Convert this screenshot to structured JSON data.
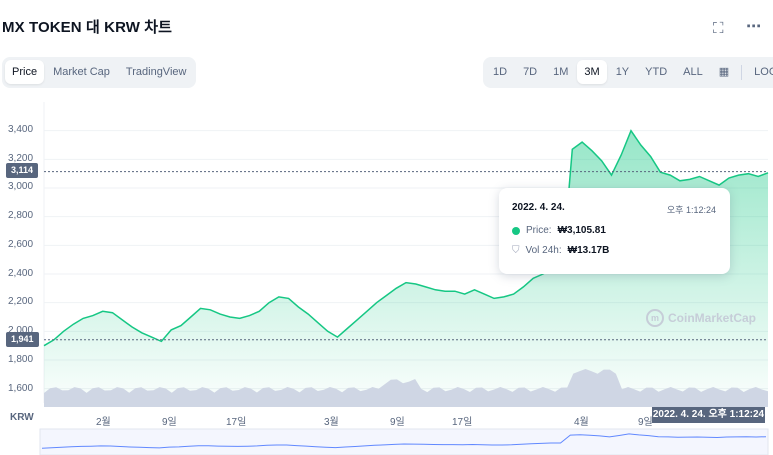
{
  "header": {
    "title": "MX TOKEN 대 KRW 차트",
    "fullscreen_icon": "expand-icon",
    "more_icon": "more-icon"
  },
  "chart_tabs": [
    "Price",
    "Market Cap",
    "TradingView"
  ],
  "active_chart_tab": "Price",
  "ranges": [
    "1D",
    "7D",
    "1M",
    "3M",
    "1Y",
    "YTD",
    "ALL"
  ],
  "active_range": "3M",
  "calendar_icon": "calendar-icon",
  "log_label": "LOG",
  "badges": {
    "current": "3,114",
    "low": "1,941"
  },
  "tooltip": {
    "date": "2022. 4. 24.",
    "time": "오후 1:12:24",
    "price_label": "Price:",
    "price_value": "₩3,105.81",
    "vol_label": "Vol 24h:",
    "vol_value": "₩13.17B"
  },
  "watermark": "CoinMarketCap",
  "x_axis_unit": "KRW",
  "cursor_date": "2022. 4. 24. 오후 1:12:24",
  "colors": {
    "up": "#16c784",
    "down": "#ea3943",
    "volume": "#cfd6e4",
    "badge": "#58667e"
  },
  "chart_data": {
    "type": "line",
    "y_ticks": [
      "3,400",
      "3,200",
      "3,000",
      "2,800",
      "2,600",
      "2,400",
      "2,200",
      "2,000",
      "1,800",
      "1,600"
    ],
    "ylim": [
      1500,
      3600
    ],
    "x_ticks": [
      "2월",
      "9일",
      "17일",
      "3월",
      "9일",
      "17일",
      "4월",
      "9일"
    ],
    "series": [
      {
        "values": [
          1900,
          1940,
          2000,
          2050,
          2090,
          2110,
          2140,
          2130,
          2080,
          2030,
          1990,
          1960,
          1930,
          2010,
          2040,
          2100,
          2160,
          2150,
          2120,
          2100,
          2090,
          2110,
          2140,
          2200,
          2240,
          2230,
          2170,
          2120,
          2060,
          2000,
          1960,
          2020,
          2080,
          2140,
          2200,
          2250,
          2300,
          2340,
          2330,
          2310,
          2290,
          2280,
          2280,
          2260,
          2290,
          2260,
          2230,
          2240,
          2260,
          2310,
          2370,
          2400,
          2440,
          2450,
          3270,
          3320,
          3260,
          3190,
          3090,
          3230,
          3400,
          3300,
          3220,
          3110,
          3090,
          3050,
          3060,
          3080,
          3050,
          3020,
          3070,
          3090,
          3100,
          3080,
          3106
        ]
      }
    ],
    "tooltip_point": {
      "date": "2022. 4. 24.",
      "price": 3105.81
    }
  }
}
